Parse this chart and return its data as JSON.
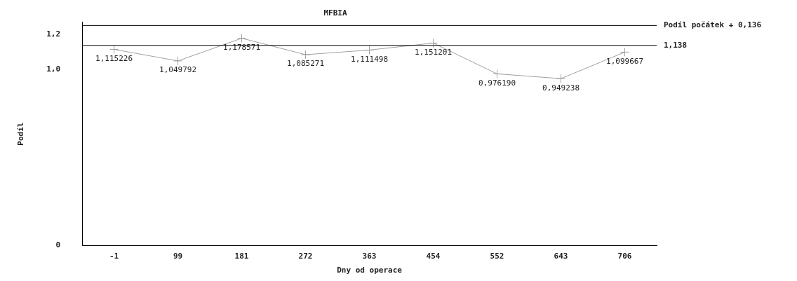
{
  "chart_data": {
    "type": "line",
    "title": "MFBIA",
    "xlabel": "Dny od operace",
    "ylabel": "Podíl",
    "categories": [
      "-1",
      "99",
      "181",
      "272",
      "363",
      "454",
      "552",
      "643",
      "706"
    ],
    "series": [
      {
        "color": "#a0a0a0",
        "values": [
          1.115226,
          1.049792,
          1.178571,
          1.085271,
          1.111498,
          1.151201,
          0.97619,
          0.949238,
          1.099667
        ],
        "value_labels": [
          "1,115226",
          "1,049792",
          "1,178571",
          "1,085271",
          "1,111498",
          "1,151201",
          "0,976190",
          "0,949238",
          "1,099667"
        ]
      }
    ],
    "ylim": [
      0,
      1.27
    ],
    "yticks": [
      0,
      {
        "value": 1.0,
        "label": "1,0"
      },
      {
        "value": 1.2,
        "label": "1,2"
      }
    ],
    "ref_lines": [
      {
        "axis": "y",
        "value": 1.251,
        "label": "Podíl počátek + 0,136",
        "color": "#000000"
      },
      {
        "axis": "y",
        "value": 1.138,
        "label": "1,138",
        "color": "#000000"
      }
    ],
    "marker": "cross",
    "grid": false,
    "legend": false
  }
}
